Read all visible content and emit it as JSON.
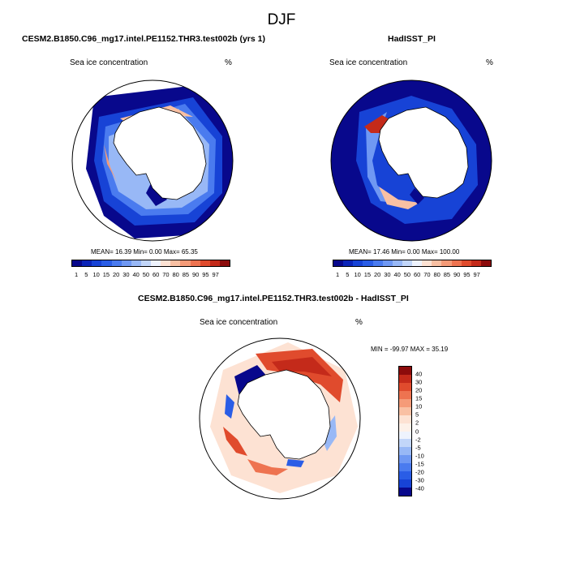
{
  "page": {
    "title": "DJF"
  },
  "panels": [
    {
      "id": "model",
      "title": "CESM2.B1850.C96_mg17.intel.PE1152.THR3.test002b (yrs 1)",
      "field": "Sea ice concentration",
      "units": "%",
      "stats": "MEAN=  16.39  Min=   0.00  Max=  65.35"
    },
    {
      "id": "obs",
      "title": "HadISST_PI",
      "field": "Sea ice concentration",
      "units": "%",
      "stats": "MEAN=  17.46  Min=   0.00  Max= 100.00"
    },
    {
      "id": "diff",
      "title": "CESM2.B1850.C96_mg17.intel.PE1152.THR3.test002b - HadISST_PI",
      "field": "Sea ice concentration",
      "units": "%",
      "stats": "MIN = -99.97 MAX =  35.19"
    }
  ],
  "abs_colorbar": {
    "labels": [
      "1",
      "5",
      "10",
      "15",
      "20",
      "30",
      "40",
      "50",
      "60",
      "70",
      "80",
      "85",
      "90",
      "95",
      "97"
    ],
    "colors": [
      "#08088c",
      "#0b24b8",
      "#1743d6",
      "#2a5de6",
      "#4a7bef",
      "#6f98f3",
      "#98b8f6",
      "#c2d6f9",
      "#eef3fd",
      "#fde2d3",
      "#f9c0a3",
      "#f59b78",
      "#ee7350",
      "#e04b2d",
      "#c42a1a",
      "#8c0b0b"
    ]
  },
  "diff_colorbar": {
    "labels": [
      "40",
      "30",
      "20",
      "15",
      "10",
      "5",
      "2",
      "0",
      "-2",
      "-5",
      "-10",
      "-15",
      "-20",
      "-30",
      "-40"
    ],
    "colors": [
      "#8c0b0b",
      "#c42a1a",
      "#e04b2d",
      "#ee7350",
      "#f59b78",
      "#f9c0a3",
      "#fde2d3",
      "#fdf1e9",
      "#eef3fd",
      "#c2d6f9",
      "#98b8f6",
      "#6f98f3",
      "#4a7bef",
      "#2a5de6",
      "#1743d6",
      "#08088c"
    ]
  }
}
